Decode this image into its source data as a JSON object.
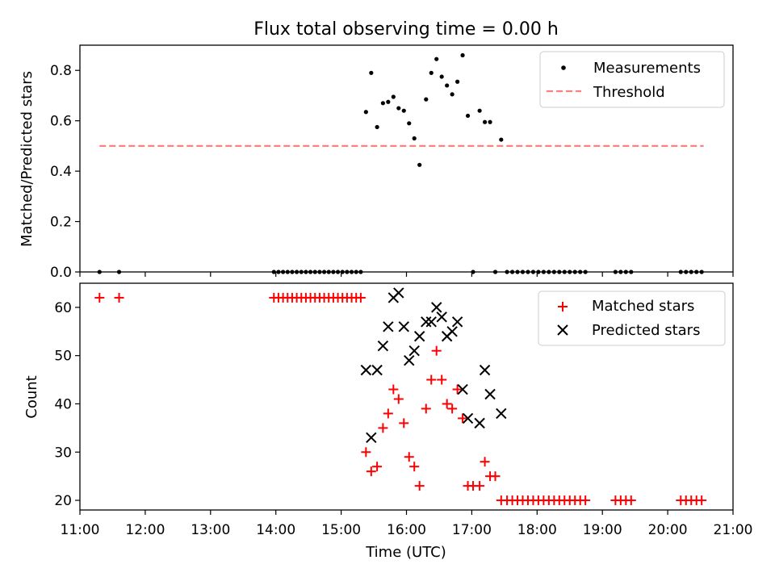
{
  "figure_title": "Flux total observing time = 0.00 h",
  "chart_data": [
    {
      "type": "scatter",
      "title": "Flux total observing time = 0.00 h",
      "xlabel": "",
      "ylabel": "Matched/Predicted stars",
      "xlim": [
        11.0,
        21.0
      ],
      "ylim": [
        0.0,
        0.9
      ],
      "yticks": [
        0.0,
        0.2,
        0.4,
        0.6,
        0.8
      ],
      "ytick_labels": [
        "0.0",
        "0.2",
        "0.4",
        "0.6",
        "0.8"
      ],
      "legend_position": "top-right",
      "grid": false,
      "series": [
        {
          "name": "Measurements",
          "marker": "dot",
          "color": "#000000",
          "x": [
            11.3,
            11.6,
            13.97,
            14.04,
            14.11,
            14.18,
            14.25,
            14.32,
            14.39,
            14.46,
            14.53,
            14.6,
            14.67,
            14.74,
            14.81,
            14.88,
            14.95,
            15.02,
            15.09,
            15.16,
            15.23,
            15.3,
            15.38,
            15.46,
            15.55,
            15.64,
            15.72,
            15.8,
            15.88,
            15.96,
            16.04,
            16.12,
            16.2,
            16.3,
            16.38,
            16.46,
            16.54,
            16.62,
            16.7,
            16.78,
            16.86,
            16.94,
            17.02,
            17.12,
            17.2,
            17.28,
            17.36,
            17.45,
            17.54,
            17.62,
            17.7,
            17.78,
            17.86,
            17.94,
            18.02,
            18.1,
            18.18,
            18.26,
            18.34,
            18.42,
            18.5,
            18.58,
            18.66,
            18.74,
            19.2,
            19.28,
            19.36,
            19.44,
            20.2,
            20.28,
            20.36,
            20.44,
            20.52
          ],
          "y": [
            0,
            0,
            0,
            0,
            0,
            0,
            0,
            0,
            0,
            0,
            0,
            0,
            0,
            0,
            0,
            0,
            0,
            0,
            0,
            0,
            0,
            0,
            0.635,
            0.79,
            0.575,
            0.67,
            0.675,
            0.695,
            0.65,
            0.64,
            0.59,
            0.53,
            0.425,
            0.685,
            0.79,
            0.845,
            0.775,
            0.74,
            0.705,
            0.755,
            0.86,
            0.62,
            0,
            0.64,
            0.595,
            0.595,
            0,
            0.525,
            0,
            0,
            0,
            0,
            0,
            0,
            0,
            0,
            0,
            0,
            0,
            0,
            0,
            0,
            0,
            0,
            0,
            0,
            0,
            0,
            0,
            0,
            0,
            0,
            0
          ]
        },
        {
          "name": "Threshold",
          "marker": "dashed-line",
          "color": "#ff7f7f",
          "x": [
            11.3,
            20.55
          ],
          "y": [
            0.5,
            0.5
          ]
        }
      ]
    },
    {
      "type": "scatter",
      "title": "",
      "xlabel": "Time (UTC)",
      "ylabel": "Count",
      "xlim": [
        11.0,
        21.0
      ],
      "ylim": [
        18,
        65
      ],
      "yticks": [
        20,
        30,
        40,
        50,
        60
      ],
      "ytick_labels": [
        "20",
        "30",
        "40",
        "50",
        "60"
      ],
      "xticks": [
        11,
        12,
        13,
        14,
        15,
        16,
        17,
        18,
        19,
        20,
        21
      ],
      "xtick_labels": [
        "11:00",
        "12:00",
        "13:00",
        "14:00",
        "15:00",
        "16:00",
        "17:00",
        "18:00",
        "19:00",
        "20:00",
        "21:00"
      ],
      "legend_position": "top-right",
      "grid": false,
      "series": [
        {
          "name": "Matched stars",
          "marker": "plus",
          "color": "#ff0000",
          "x": [
            11.3,
            11.6,
            13.97,
            14.04,
            14.11,
            14.18,
            14.25,
            14.32,
            14.39,
            14.46,
            14.53,
            14.6,
            14.67,
            14.74,
            14.81,
            14.88,
            14.95,
            15.02,
            15.09,
            15.16,
            15.23,
            15.3,
            15.38,
            15.46,
            15.55,
            15.64,
            15.72,
            15.8,
            15.88,
            15.96,
            16.04,
            16.12,
            16.2,
            16.3,
            16.38,
            16.46,
            16.54,
            16.62,
            16.7,
            16.78,
            16.86,
            16.94,
            17.02,
            17.12,
            17.2,
            17.28,
            17.36,
            17.45,
            17.54,
            17.62,
            17.7,
            17.78,
            17.86,
            17.94,
            18.02,
            18.1,
            18.18,
            18.26,
            18.34,
            18.42,
            18.5,
            18.58,
            18.66,
            18.74,
            19.2,
            19.28,
            19.36,
            19.44,
            20.2,
            20.28,
            20.36,
            20.44,
            20.52
          ],
          "y": [
            62,
            62,
            62,
            62,
            62,
            62,
            62,
            62,
            62,
            62,
            62,
            62,
            62,
            62,
            62,
            62,
            62,
            62,
            62,
            62,
            62,
            62,
            30,
            26,
            27,
            35,
            38,
            43,
            41,
            36,
            29,
            27,
            23,
            39,
            45,
            51,
            45,
            40,
            39,
            43,
            37,
            23,
            23,
            23,
            28,
            25,
            25,
            20,
            20,
            20,
            20,
            20,
            20,
            20,
            20,
            20,
            20,
            20,
            20,
            20,
            20,
            20,
            20,
            20,
            20,
            20,
            20,
            20,
            20,
            20,
            20,
            20,
            20
          ]
        },
        {
          "name": "Predicted stars",
          "marker": "x",
          "color": "#000000",
          "x": [
            15.38,
            15.46,
            15.55,
            15.64,
            15.72,
            15.8,
            15.88,
            15.96,
            16.04,
            16.12,
            16.2,
            16.3,
            16.38,
            16.46,
            16.54,
            16.62,
            16.7,
            16.78,
            16.86,
            16.94,
            17.12,
            17.2,
            17.28,
            17.45
          ],
          "y": [
            47,
            33,
            47,
            52,
            56,
            62,
            63,
            56,
            49,
            51,
            54,
            57,
            57,
            60,
            58,
            54,
            55,
            57,
            43,
            37,
            36,
            47,
            42,
            38
          ]
        }
      ]
    }
  ]
}
